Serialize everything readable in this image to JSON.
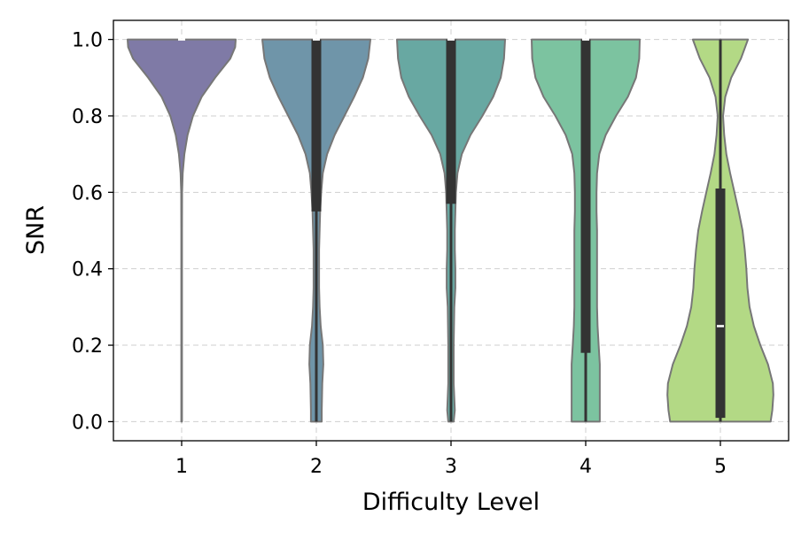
{
  "chart_data": {
    "type": "violin",
    "xlabel": "Difficulty Level",
    "ylabel": "SNR",
    "ylim": [
      -0.05,
      1.05
    ],
    "yticks": [
      "0.0",
      "0.2",
      "0.4",
      "0.6",
      "0.8",
      "1.0"
    ],
    "ytick_values": [
      0.0,
      0.2,
      0.4,
      0.6,
      0.8,
      1.0
    ],
    "grid": true,
    "categories": [
      "1",
      "2",
      "3",
      "4",
      "5"
    ],
    "violins": [
      {
        "category": "1",
        "color": "#7f7aa6",
        "q1": 1.0,
        "median": 1.0,
        "q3": 1.0,
        "whisker_low": 1.0,
        "whisker_high": 1.0,
        "density": [
          [
            0.0,
            0.007
          ],
          [
            0.1,
            0.007
          ],
          [
            0.2,
            0.006
          ],
          [
            0.3,
            0.006
          ],
          [
            0.4,
            0.006
          ],
          [
            0.5,
            0.007
          ],
          [
            0.6,
            0.009
          ],
          [
            0.65,
            0.02
          ],
          [
            0.7,
            0.05
          ],
          [
            0.75,
            0.11
          ],
          [
            0.8,
            0.21
          ],
          [
            0.85,
            0.37
          ],
          [
            0.9,
            0.62
          ],
          [
            0.95,
            0.9
          ],
          [
            0.98,
            0.99
          ],
          [
            1.0,
            1.0
          ]
        ]
      },
      {
        "category": "2",
        "color": "#6f95a9",
        "q1": 0.55,
        "median": 1.0,
        "q3": 1.0,
        "whisker_low": 0.0,
        "whisker_high": 1.0,
        "density": [
          [
            0.0,
            0.1
          ],
          [
            0.03,
            0.1
          ],
          [
            0.1,
            0.11
          ],
          [
            0.15,
            0.13
          ],
          [
            0.2,
            0.12
          ],
          [
            0.25,
            0.08
          ],
          [
            0.3,
            0.06
          ],
          [
            0.35,
            0.05
          ],
          [
            0.4,
            0.05
          ],
          [
            0.45,
            0.05
          ],
          [
            0.5,
            0.06
          ],
          [
            0.55,
            0.07
          ],
          [
            0.6,
            0.09
          ],
          [
            0.65,
            0.12
          ],
          [
            0.7,
            0.2
          ],
          [
            0.75,
            0.34
          ],
          [
            0.8,
            0.52
          ],
          [
            0.85,
            0.7
          ],
          [
            0.9,
            0.86
          ],
          [
            0.95,
            0.96
          ],
          [
            1.0,
            1.0
          ]
        ]
      },
      {
        "category": "3",
        "color": "#68a8a2",
        "q1": 0.57,
        "median": 1.0,
        "q3": 1.0,
        "whisker_low": 0.0,
        "whisker_high": 1.0,
        "density": [
          [
            0.0,
            0.05
          ],
          [
            0.03,
            0.07
          ],
          [
            0.1,
            0.05
          ],
          [
            0.2,
            0.05
          ],
          [
            0.3,
            0.06
          ],
          [
            0.35,
            0.08
          ],
          [
            0.4,
            0.08
          ],
          [
            0.45,
            0.07
          ],
          [
            0.5,
            0.07
          ],
          [
            0.55,
            0.08
          ],
          [
            0.6,
            0.09
          ],
          [
            0.65,
            0.12
          ],
          [
            0.7,
            0.2
          ],
          [
            0.75,
            0.36
          ],
          [
            0.8,
            0.58
          ],
          [
            0.85,
            0.78
          ],
          [
            0.9,
            0.92
          ],
          [
            0.95,
            0.98
          ],
          [
            1.0,
            1.0
          ]
        ]
      },
      {
        "category": "4",
        "color": "#7cc3a0",
        "q1": 0.18,
        "median": 1.0,
        "q3": 1.0,
        "whisker_low": 0.0,
        "whisker_high": 1.0,
        "density": [
          [
            0.0,
            0.26
          ],
          [
            0.03,
            0.26
          ],
          [
            0.1,
            0.26
          ],
          [
            0.15,
            0.26
          ],
          [
            0.2,
            0.24
          ],
          [
            0.25,
            0.22
          ],
          [
            0.3,
            0.21
          ],
          [
            0.35,
            0.21
          ],
          [
            0.4,
            0.21
          ],
          [
            0.45,
            0.21
          ],
          [
            0.5,
            0.21
          ],
          [
            0.55,
            0.2
          ],
          [
            0.6,
            0.2
          ],
          [
            0.65,
            0.21
          ],
          [
            0.7,
            0.25
          ],
          [
            0.75,
            0.37
          ],
          [
            0.8,
            0.56
          ],
          [
            0.85,
            0.78
          ],
          [
            0.9,
            0.93
          ],
          [
            0.95,
            0.99
          ],
          [
            1.0,
            1.0
          ]
        ]
      },
      {
        "category": "5",
        "color": "#b3d985",
        "q1": 0.01,
        "median": 0.25,
        "q3": 0.61,
        "whisker_low": 0.0,
        "whisker_high": 1.0,
        "density": [
          [
            0.0,
            0.93
          ],
          [
            0.03,
            0.96
          ],
          [
            0.07,
            0.98
          ],
          [
            0.1,
            0.97
          ],
          [
            0.15,
            0.88
          ],
          [
            0.2,
            0.74
          ],
          [
            0.25,
            0.62
          ],
          [
            0.3,
            0.54
          ],
          [
            0.35,
            0.5
          ],
          [
            0.4,
            0.48
          ],
          [
            0.45,
            0.45
          ],
          [
            0.5,
            0.41
          ],
          [
            0.55,
            0.34
          ],
          [
            0.6,
            0.26
          ],
          [
            0.65,
            0.18
          ],
          [
            0.7,
            0.11
          ],
          [
            0.75,
            0.07
          ],
          [
            0.8,
            0.05
          ],
          [
            0.85,
            0.09
          ],
          [
            0.9,
            0.2
          ],
          [
            0.95,
            0.38
          ],
          [
            1.0,
            0.51
          ]
        ]
      }
    ]
  }
}
